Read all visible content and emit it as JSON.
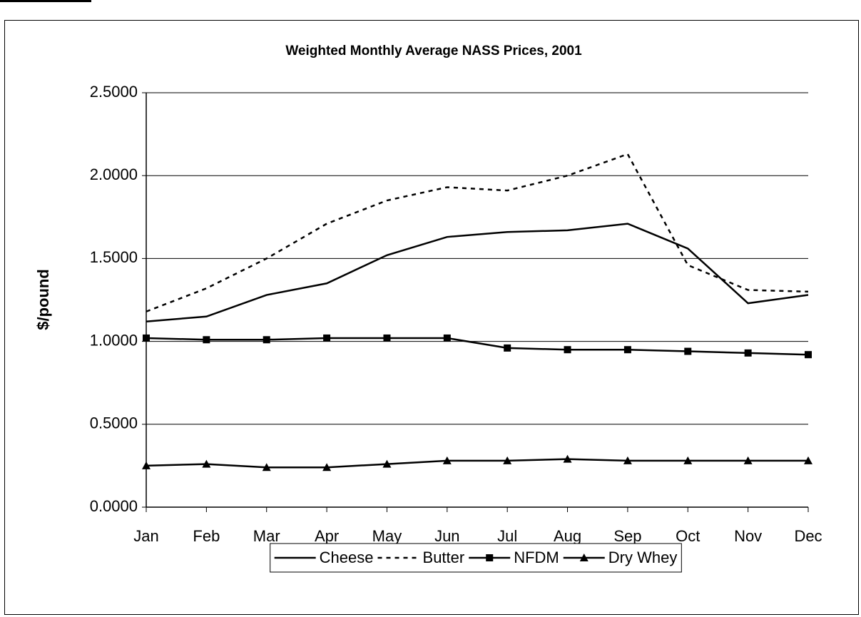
{
  "chart_data": {
    "type": "line",
    "title": "Weighted Monthly Average NASS Prices, 2001",
    "y_label": "$/pound",
    "categories": [
      "Jan",
      "Feb",
      "Mar",
      "Apr",
      "May",
      "Jun",
      "Jul",
      "Aug",
      "Sep",
      "Oct",
      "Nov",
      "Dec"
    ],
    "series": [
      {
        "name": "Cheese",
        "color": "#000000",
        "dash": "none",
        "marker": "none",
        "values": [
          1.12,
          1.15,
          1.28,
          1.35,
          1.52,
          1.63,
          1.66,
          1.67,
          1.71,
          1.56,
          1.23,
          1.28
        ]
      },
      {
        "name": "Butter",
        "color": "#000000",
        "dash": "dashed",
        "marker": "none",
        "values": [
          1.18,
          1.32,
          1.5,
          1.71,
          1.85,
          1.93,
          1.91,
          2.0,
          2.13,
          1.46,
          1.31,
          1.3
        ]
      },
      {
        "name": "NFDM",
        "color": "#000000",
        "dash": "none",
        "marker": "square",
        "values": [
          1.02,
          1.01,
          1.01,
          1.02,
          1.02,
          1.02,
          0.96,
          0.95,
          0.95,
          0.94,
          0.93,
          0.92
        ]
      },
      {
        "name": "Dry Whey",
        "color": "#000000",
        "dash": "none",
        "marker": "triangle",
        "values": [
          0.25,
          0.26,
          0.24,
          0.24,
          0.26,
          0.28,
          0.28,
          0.29,
          0.28,
          0.28,
          0.28,
          0.28
        ]
      }
    ],
    "ylim": [
      0,
      2.5
    ],
    "yticks": [
      {
        "value": 0,
        "label": "0.0000"
      },
      {
        "value": 0.5,
        "label": "0.5000"
      },
      {
        "value": 1,
        "label": "1.0000"
      },
      {
        "value": 1.5,
        "label": "1.5000"
      },
      {
        "value": 2,
        "label": "2.0000"
      },
      {
        "value": 2.5,
        "label": "2.5000"
      }
    ],
    "grid": true,
    "legend": "bottom"
  }
}
